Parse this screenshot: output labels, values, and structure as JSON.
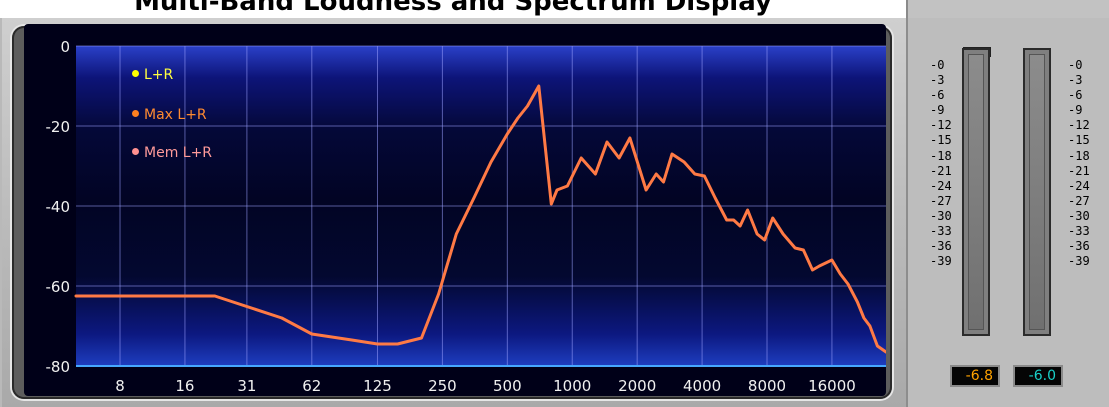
{
  "window": {
    "title": "Multi-Band Loudness and Spectrum Display"
  },
  "spectrum": {
    "legend": [
      {
        "label": "L+R",
        "color": "#ffff00"
      },
      {
        "label": "Max L+R",
        "color": "#ff8020"
      },
      {
        "label": "Mem L+R",
        "color": "#ff9090"
      }
    ],
    "y_ticks": [
      "0",
      "-20",
      "-40",
      "-60",
      "-80"
    ],
    "x_ticks": [
      "8",
      "16",
      "31",
      "62",
      "125",
      "250",
      "500",
      "1000",
      "2000",
      "4000",
      "8000",
      "16000"
    ],
    "grid_color": "#9aa0ff",
    "trace_color": "#ff7a45"
  },
  "chart_data": {
    "type": "line",
    "xscale": "log",
    "ylim": [
      -80,
      0
    ],
    "series": [
      {
        "name": "Max L+R",
        "points": [
          [
            5,
            -62.5
          ],
          [
            22,
            -62.5
          ],
          [
            45,
            -68
          ],
          [
            62,
            -72
          ],
          [
            95,
            -73.5
          ],
          [
            125,
            -74.5
          ],
          [
            155,
            -74.5
          ],
          [
            200,
            -73
          ],
          [
            240,
            -62
          ],
          [
            290,
            -47
          ],
          [
            350,
            -38
          ],
          [
            420,
            -29
          ],
          [
            500,
            -22
          ],
          [
            560,
            -18
          ],
          [
            620,
            -15
          ],
          [
            700,
            -10
          ],
          [
            800,
            -39.5
          ],
          [
            850,
            -36
          ],
          [
            950,
            -35
          ],
          [
            1100,
            -28
          ],
          [
            1280,
            -32
          ],
          [
            1450,
            -24
          ],
          [
            1650,
            -28
          ],
          [
            1850,
            -23
          ],
          [
            2200,
            -36
          ],
          [
            2450,
            -32
          ],
          [
            2650,
            -34
          ],
          [
            2900,
            -27
          ],
          [
            3300,
            -29
          ],
          [
            3700,
            -32
          ],
          [
            4100,
            -32.5
          ],
          [
            4600,
            -38
          ],
          [
            5200,
            -43.5
          ],
          [
            5600,
            -43.5
          ],
          [
            6000,
            -45
          ],
          [
            6500,
            -41
          ],
          [
            7200,
            -47
          ],
          [
            7800,
            -48.5
          ],
          [
            8500,
            -43
          ],
          [
            9500,
            -47
          ],
          [
            10800,
            -50.5
          ],
          [
            11800,
            -51
          ],
          [
            13000,
            -56
          ],
          [
            14000,
            -55
          ],
          [
            16000,
            -53.5
          ],
          [
            17500,
            -57
          ],
          [
            19000,
            -59.5
          ],
          [
            21000,
            -64
          ],
          [
            22500,
            -68
          ],
          [
            24000,
            -70
          ],
          [
            26000,
            -75
          ],
          [
            28500,
            -76.5
          ]
        ]
      }
    ]
  },
  "meters": {
    "scale": [
      "-0",
      "-3",
      "-6",
      "-9",
      "-12",
      "-15",
      "-18",
      "-21",
      "-24",
      "-27",
      "-30",
      "-33",
      "-36",
      "-39"
    ],
    "left_value": "-6.8",
    "right_value": "-6.0",
    "left_color": "#ffa200",
    "right_color": "#19d0c8"
  }
}
